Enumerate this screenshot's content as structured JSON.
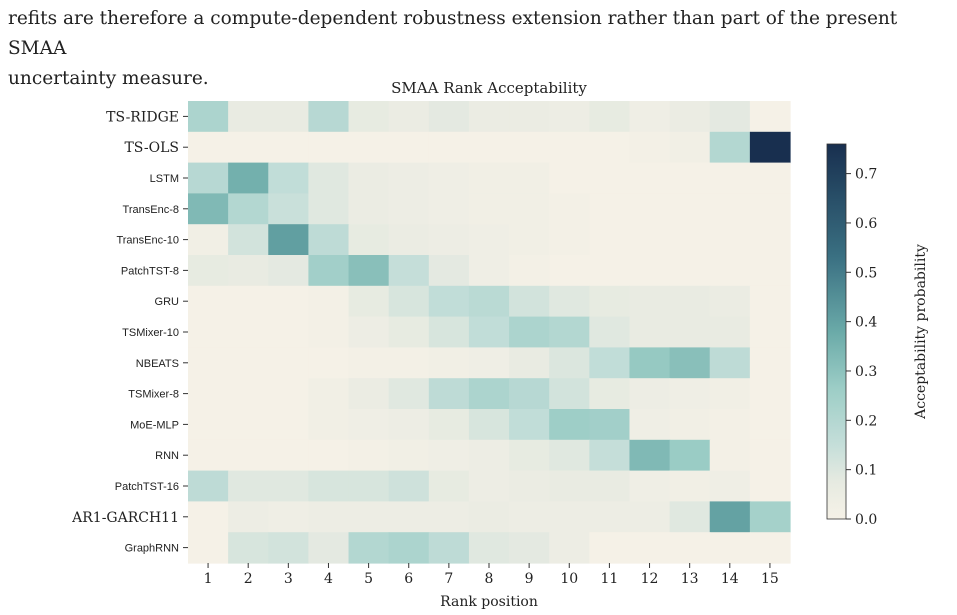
{
  "page_text": {
    "line1": "refits are therefore a compute-dependent robustness extension rather than part of the present SMAA",
    "line2": "uncertainty measure."
  },
  "chart_data": {
    "type": "heatmap",
    "title": "SMAA Rank Acceptability",
    "xlabel": "Rank position",
    "colorbar_label": "Acceptability probability",
    "colorbar_ticks": [
      "0.0",
      "0.1",
      "0.2",
      "0.3",
      "0.4",
      "0.5",
      "0.6",
      "0.7"
    ],
    "value_range": [
      0,
      0.76
    ],
    "x": [
      "1",
      "2",
      "3",
      "4",
      "5",
      "6",
      "7",
      "8",
      "9",
      "10",
      "11",
      "12",
      "13",
      "14",
      "15"
    ],
    "y": [
      {
        "label": "TS-RIDGE",
        "font": "serif"
      },
      {
        "label": "TS-OLS",
        "font": "serif"
      },
      {
        "label": "LSTM",
        "font": "sans"
      },
      {
        "label": "TransEnc-8",
        "font": "sans"
      },
      {
        "label": "TransEnc-10",
        "font": "sans"
      },
      {
        "label": "PatchTST-8",
        "font": "sans"
      },
      {
        "label": "GRU",
        "font": "sans"
      },
      {
        "label": "TSMixer-10",
        "font": "sans"
      },
      {
        "label": "NBEATS",
        "font": "sans"
      },
      {
        "label": "TSMixer-8",
        "font": "sans"
      },
      {
        "label": "MoE-MLP",
        "font": "sans"
      },
      {
        "label": "RNN",
        "font": "sans"
      },
      {
        "label": "PatchTST-16",
        "font": "sans"
      },
      {
        "label": "AR1-GARCH11",
        "font": "serif"
      },
      {
        "label": "GraphRNN",
        "font": "sans"
      }
    ],
    "values": [
      [
        0.22,
        0.06,
        0.06,
        0.19,
        0.07,
        0.05,
        0.08,
        0.05,
        0.05,
        0.04,
        0.07,
        0.03,
        0.05,
        0.08,
        0.0
      ],
      [
        0.0,
        0.0,
        0.0,
        0.0,
        0.0,
        0.0,
        0.0,
        0.0,
        0.0,
        0.0,
        0.0,
        0.01,
        0.02,
        0.2,
        0.76
      ],
      [
        0.19,
        0.36,
        0.16,
        0.09,
        0.05,
        0.04,
        0.03,
        0.02,
        0.02,
        0.0,
        0.0,
        0.0,
        0.0,
        0.0,
        0.0
      ],
      [
        0.33,
        0.2,
        0.14,
        0.09,
        0.05,
        0.04,
        0.03,
        0.02,
        0.02,
        0.01,
        0.0,
        0.0,
        0.0,
        0.0,
        0.0
      ],
      [
        0.02,
        0.12,
        0.41,
        0.17,
        0.07,
        0.05,
        0.04,
        0.03,
        0.02,
        0.01,
        0.0,
        0.0,
        0.0,
        0.0,
        0.0
      ],
      [
        0.07,
        0.06,
        0.08,
        0.25,
        0.31,
        0.15,
        0.08,
        0.03,
        0.01,
        0.0,
        0.0,
        0.0,
        0.0,
        0.0,
        0.0
      ],
      [
        0.0,
        0.0,
        0.0,
        0.01,
        0.07,
        0.11,
        0.16,
        0.18,
        0.12,
        0.09,
        0.07,
        0.06,
        0.06,
        0.05,
        0.0
      ],
      [
        0.0,
        0.0,
        0.0,
        0.01,
        0.04,
        0.07,
        0.11,
        0.16,
        0.22,
        0.2,
        0.09,
        0.06,
        0.06,
        0.06,
        0.0
      ],
      [
        0.0,
        0.0,
        0.0,
        0.0,
        0.01,
        0.01,
        0.02,
        0.03,
        0.06,
        0.1,
        0.16,
        0.28,
        0.31,
        0.17,
        0.0
      ],
      [
        0.0,
        0.0,
        0.0,
        0.02,
        0.05,
        0.09,
        0.17,
        0.22,
        0.19,
        0.12,
        0.07,
        0.04,
        0.03,
        0.02,
        0.0
      ],
      [
        0.0,
        0.0,
        0.0,
        0.02,
        0.03,
        0.04,
        0.07,
        0.11,
        0.16,
        0.26,
        0.25,
        0.03,
        0.02,
        0.01,
        0.0
      ],
      [
        0.0,
        0.0,
        0.0,
        0.0,
        0.01,
        0.02,
        0.03,
        0.04,
        0.07,
        0.09,
        0.15,
        0.33,
        0.27,
        0.01,
        0.0
      ],
      [
        0.17,
        0.09,
        0.09,
        0.11,
        0.11,
        0.13,
        0.07,
        0.04,
        0.05,
        0.06,
        0.06,
        0.03,
        0.02,
        0.03,
        0.0
      ],
      [
        0.0,
        0.04,
        0.03,
        0.04,
        0.04,
        0.04,
        0.04,
        0.05,
        0.04,
        0.04,
        0.04,
        0.04,
        0.09,
        0.4,
        0.24
      ],
      [
        0.0,
        0.11,
        0.12,
        0.08,
        0.2,
        0.22,
        0.17,
        0.09,
        0.08,
        0.04,
        0.0,
        0.0,
        0.0,
        0.0,
        0.0
      ]
    ]
  }
}
